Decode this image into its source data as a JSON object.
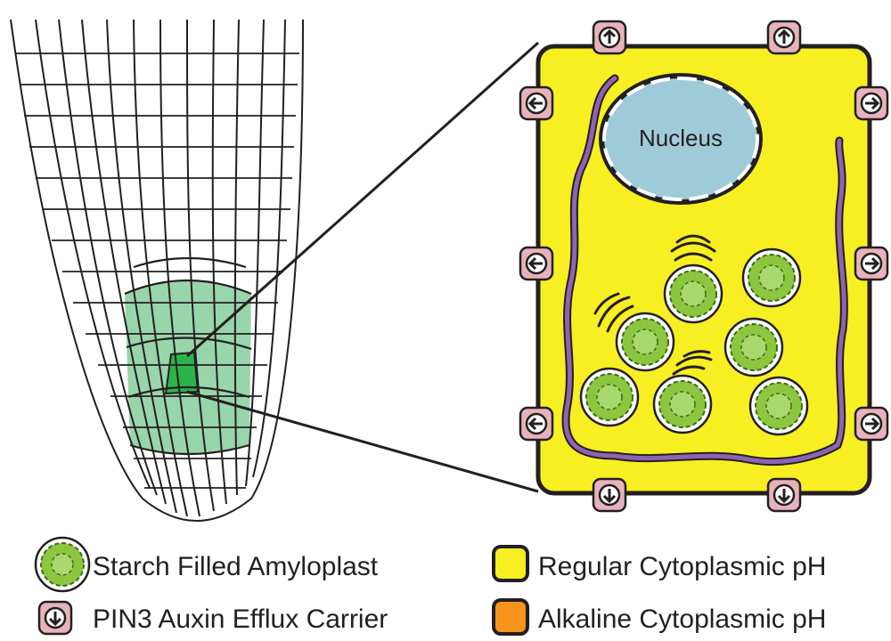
{
  "diagram": {
    "cell": {
      "nucleus_label": "Nucleus"
    },
    "legend": {
      "amyloplast": "Starch Filled Amyloplast",
      "pin3": "PIN3 Auxin Efflux Carrier",
      "regular_ph": "Regular Cytoplasmic pH",
      "alkaline_ph": "Alkaline Cytoplasmic pH"
    }
  },
  "colors": {
    "cytoplasm_regular": "#f7ef22",
    "cytoplasm_alkaline": "#f7941d",
    "columella_light": "#99d5ab",
    "columella_dark": "#2bb44a",
    "amyloplast": "#8cc63f",
    "nucleus": "#9fcbd8",
    "pin3": "#e7b3ba",
    "membrane": "#8f63b2"
  }
}
